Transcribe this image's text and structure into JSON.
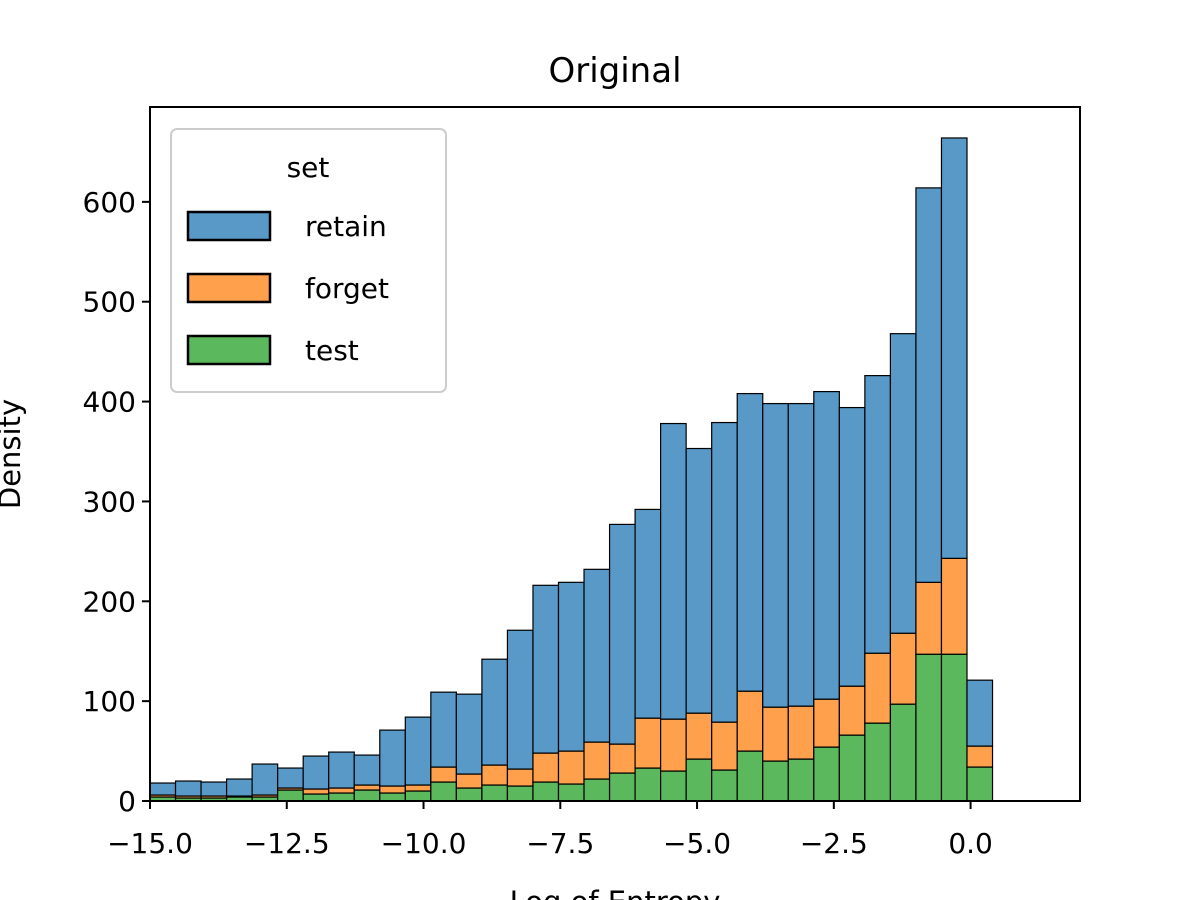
{
  "chart_data": {
    "type": "bar",
    "stacked": true,
    "title": "Original",
    "xlabel": "Log of Entropy",
    "ylabel": "Density",
    "xlim": [
      -15.0,
      2.0
    ],
    "ylim": [
      0,
      695
    ],
    "xticks": [
      -15.0,
      -12.5,
      -10.0,
      -7.5,
      -5.0,
      -2.5,
      0.0
    ],
    "xtick_labels": [
      "−15.0",
      "−12.5",
      "−10.0",
      "−7.5",
      "−5.0",
      "−2.5",
      "0.0"
    ],
    "yticks": [
      0,
      100,
      200,
      300,
      400,
      500,
      600
    ],
    "ytick_labels": [
      "0",
      "100",
      "200",
      "300",
      "400",
      "500",
      "600"
    ],
    "grid": false,
    "legend": {
      "title": "set",
      "position": "top-left"
    },
    "bin_start": -15.0,
    "bin_width": 0.4667,
    "series": [
      {
        "name": "test",
        "color": "#5cb85c",
        "values": [
          4,
          3,
          3,
          4,
          4,
          11,
          7,
          8,
          11,
          8,
          10,
          19,
          13,
          16,
          15,
          19,
          17,
          22,
          28,
          33,
          30,
          42,
          31,
          50,
          40,
          42,
          54,
          66,
          78,
          97,
          147,
          147,
          34
        ]
      },
      {
        "name": "forget",
        "color": "#ffa04d",
        "values": [
          2,
          2,
          2,
          1,
          2,
          2,
          5,
          5,
          5,
          7,
          6,
          15,
          14,
          20,
          17,
          29,
          33,
          37,
          29,
          50,
          52,
          46,
          48,
          60,
          54,
          53,
          48,
          49,
          70,
          71,
          72,
          96,
          21
        ]
      },
      {
        "name": "retain",
        "color": "#5899c8",
        "values": [
          12,
          15,
          14,
          17,
          31,
          20,
          33,
          36,
          30,
          56,
          68,
          75,
          80,
          106,
          139,
          168,
          169,
          173,
          220,
          209,
          296,
          265,
          300,
          298,
          304,
          303,
          308,
          279,
          278,
          300,
          395,
          421,
          66
        ]
      }
    ]
  }
}
